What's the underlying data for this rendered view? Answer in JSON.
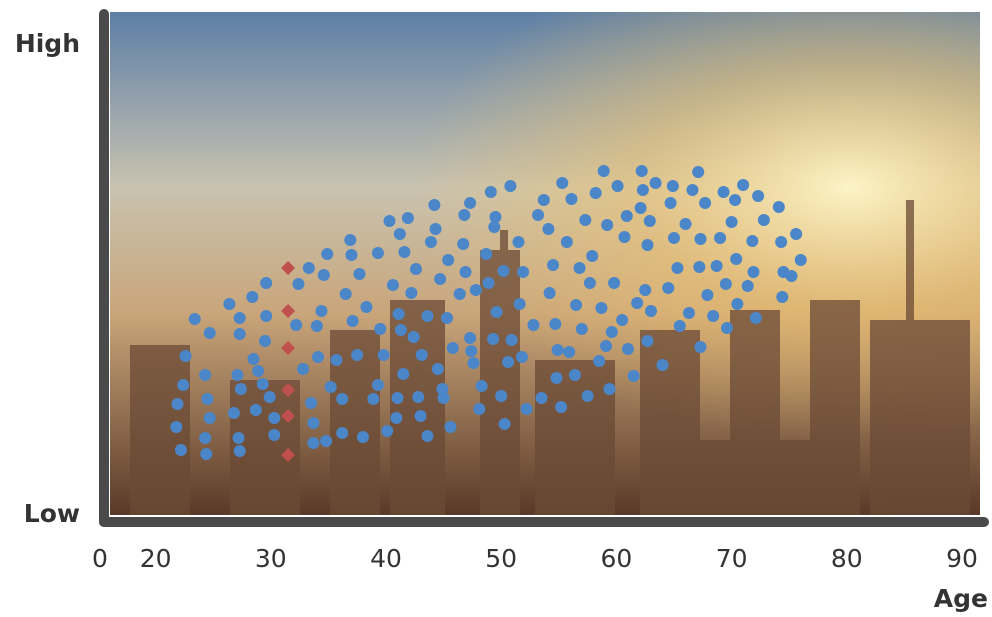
{
  "chart_data": {
    "type": "scatter",
    "x_label": "Age",
    "origin_label": "0",
    "xlim": [
      15,
      90
    ],
    "xticks": [
      20,
      30,
      40,
      50,
      60,
      70,
      80,
      90
    ],
    "ylim": [
      0,
      94
    ],
    "yticks": [
      {
        "value": 0,
        "label": "Low"
      },
      {
        "value": 94,
        "label": "High"
      }
    ],
    "axis_color": "#4a4a4a",
    "series": [
      {
        "color": "#4a86c8",
        "marker": "circle",
        "x": [
          21.9,
          21.8,
          22.2,
          22.4,
          22.6,
          23.4,
          24.3,
          24.5,
          24.3,
          24.4,
          24.7,
          24.7,
          26.4,
          26.8,
          27.1,
          27.2,
          27.3,
          27.4,
          27.3,
          27.3,
          28.4,
          28.5,
          28.7,
          28.9,
          29.3,
          29.5,
          29.6,
          29.6,
          29.9,
          30.3,
          30.3,
          32.2,
          32.4,
          32.8,
          33.3,
          33.5,
          33.7,
          33.7,
          34,
          34.1,
          34.4,
          34.6,
          34.8,
          34.9,
          35.2,
          35.7,
          36.2,
          36.2,
          36.5,
          36.9,
          37,
          37.1,
          37.5,
          37.7,
          38,
          38.3,
          38.9,
          39.3,
          39.3,
          39.5,
          39.8,
          40.1,
          40.3,
          40.6,
          40.9,
          41,
          41.1,
          41.2,
          41.3,
          41.5,
          41.6,
          41.9,
          42.2,
          42.4,
          42.6,
          42.8,
          43,
          43.1,
          43.6,
          43.6,
          43.9,
          44.2,
          44.3,
          44.5,
          44.7,
          44.9,
          45,
          45.3,
          45.4,
          45.6,
          45.8,
          46.4,
          46.7,
          46.8,
          46.9,
          47.3,
          47.3,
          47.4,
          47.6,
          47.8,
          48.1,
          48.3,
          48.7,
          48.9,
          49.1,
          49.3,
          49.4,
          49.5,
          49.6,
          50,
          50.2,
          50.3,
          50.6,
          50.8,
          50.9,
          51.5,
          51.6,
          51.8,
          51.9,
          52.2,
          52.8,
          53.2,
          53.5,
          53.7,
          54.1,
          54.2,
          54.5,
          54.7,
          54.8,
          54.9,
          55.2,
          55.3,
          55.7,
          55.9,
          56.1,
          56.4,
          56.5,
          56.8,
          57,
          57.3,
          57.5,
          57.7,
          57.9,
          58.2,
          58.5,
          58.7,
          58.9,
          59.1,
          59.2,
          59.4,
          59.6,
          59.8,
          60.1,
          60.5,
          60.7,
          60.9,
          61,
          61.5,
          61.8,
          62.1,
          62.2,
          62.3,
          62.5,
          62.7,
          62.7,
          62.9,
          63,
          63.4,
          64,
          64.5,
          64.7,
          64.9,
          65,
          65.3,
          65.5,
          66,
          66.3,
          66.6,
          67.1,
          67.2,
          67.3,
          67.3,
          67.7,
          67.9,
          68.4,
          68.7,
          69,
          69.3,
          69.5,
          69.6,
          70,
          70.3,
          70.4,
          70.5,
          71,
          71.4,
          71.8,
          71.9,
          72.1,
          72.3,
          72.8,
          74.1,
          74.3,
          74.4,
          74.5,
          75.2,
          75.6,
          76
        ],
        "values": [
          22.2,
          17.6,
          13,
          26,
          31.8,
          39.2,
          28,
          23.2,
          15.4,
          12.2,
          19.4,
          36.4,
          42.2,
          20.4,
          28,
          15.4,
          12.8,
          25.2,
          36.2,
          39.4,
          43.6,
          31.2,
          21,
          28.8,
          26.2,
          34.8,
          46.4,
          39.8,
          23.6,
          16,
          19.4,
          38,
          46.2,
          29.2,
          49.4,
          22.4,
          18.4,
          14.4,
          37.8,
          31.6,
          40.8,
          48,
          14.8,
          52.2,
          25.6,
          31,
          23.2,
          16.4,
          44.2,
          55,
          52,
          38.8,
          32,
          48.2,
          15.6,
          41.6,
          23.2,
          26,
          52.4,
          37.2,
          32,
          16.8,
          58.8,
          46,
          19.4,
          23.4,
          40.2,
          56.2,
          37,
          28.2,
          52.6,
          59.4,
          44.4,
          35.6,
          49.2,
          23.6,
          19.8,
          32,
          15.8,
          39.8,
          54.6,
          62,
          57.2,
          29.2,
          47.2,
          25.2,
          23.4,
          39.4,
          51,
          17.6,
          33.4,
          44.2,
          54.2,
          60,
          48.6,
          62.4,
          35.4,
          32.8,
          30.4,
          45,
          21.2,
          25.8,
          52.2,
          46.4,
          64.6,
          35.2,
          57.6,
          59.6,
          40.6,
          23.8,
          48.8,
          18.2,
          30.6,
          65.8,
          35,
          54.6,
          42.2,
          31.6,
          48.6,
          21.2,
          38,
          60,
          23.4,
          63,
          57.2,
          44.4,
          50,
          38.2,
          27.4,
          33,
          21.6,
          66.4,
          54.6,
          32.6,
          63.2,
          28,
          42,
          49.4,
          37.2,
          59,
          23.8,
          46.4,
          51.8,
          64.4,
          30.8,
          41.4,
          68.8,
          33.8,
          58,
          25.2,
          36.6,
          46.4,
          65.8,
          39,
          55.6,
          59.8,
          33.2,
          27.8,
          42.4,
          61.4,
          68.8,
          65,
          45,
          54,
          34.8,
          58.8,
          40.8,
          66.4,
          30,
          45.4,
          62.4,
          65.8,
          55.4,
          49.4,
          37.8,
          58.2,
          40.4,
          65,
          68.6,
          49.6,
          55.2,
          33.6,
          62.4,
          44,
          39.8,
          49.8,
          55.4,
          64.6,
          46.2,
          37.4,
          58.6,
          63,
          51.2,
          42.2,
          66,
          45.8,
          54.8,
          48.6,
          39.4,
          63.8,
          59,
          61.6,
          54.6,
          43.6,
          48.6,
          47.8,
          56.2,
          51
        ]
      },
      {
        "color": "#c0504d",
        "marker": "diamond",
        "x": [
          31.5,
          31.5,
          31.5,
          31.5,
          31.5,
          31.5
        ],
        "values": [
          49.4,
          40.8,
          33.4,
          25,
          19.8,
          12
        ]
      }
    ]
  }
}
